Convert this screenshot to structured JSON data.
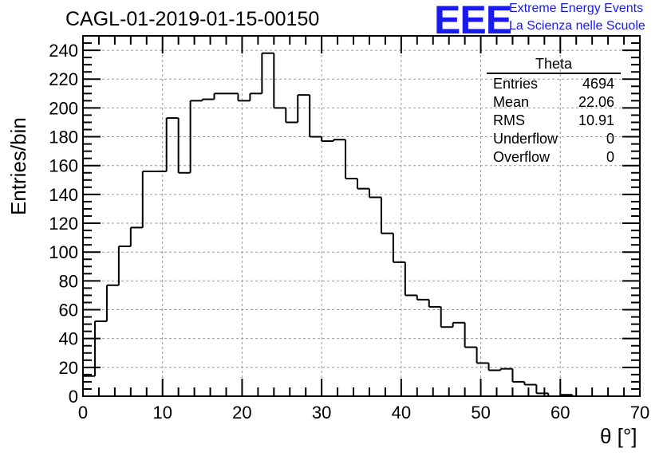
{
  "title": "CAGL-01-2019-01-15-00150",
  "logo": {
    "mark": "EEE",
    "line1": "Extreme Energy Events",
    "line2": "La Scienza nelle Scuole",
    "color": "#1a1aee"
  },
  "stats": {
    "title": "Theta",
    "rows": [
      {
        "label": "Entries",
        "value": "4694"
      },
      {
        "label": "Mean",
        "value": "22.06"
      },
      {
        "label": "RMS",
        "value": "10.91"
      },
      {
        "label": "Underflow",
        "value": "0"
      },
      {
        "label": "Overflow",
        "value": "0"
      }
    ]
  },
  "chart_data": {
    "type": "bar",
    "style": "step-histogram",
    "xlabel": "θ [°]",
    "ylabel": "Entries/bin",
    "xlim": [
      0,
      70
    ],
    "ylim": [
      0,
      250
    ],
    "grid": true,
    "x_ticks": [
      0,
      10,
      20,
      30,
      40,
      50,
      60,
      70
    ],
    "y_ticks": [
      0,
      20,
      40,
      60,
      80,
      100,
      120,
      140,
      160,
      180,
      200,
      220,
      240
    ],
    "bin_width": 1.5,
    "bin_edges_start": 0,
    "values": [
      14,
      52,
      77,
      104,
      117,
      156,
      156,
      193,
      155,
      205,
      206,
      210,
      210,
      205,
      210,
      238,
      200,
      190,
      209,
      180,
      177,
      178,
      151,
      144,
      138,
      113,
      93,
      70,
      67,
      62,
      48,
      51,
      34,
      23,
      18,
      19,
      10,
      8,
      2,
      0,
      1,
      0,
      0,
      0,
      0,
      0
    ]
  }
}
